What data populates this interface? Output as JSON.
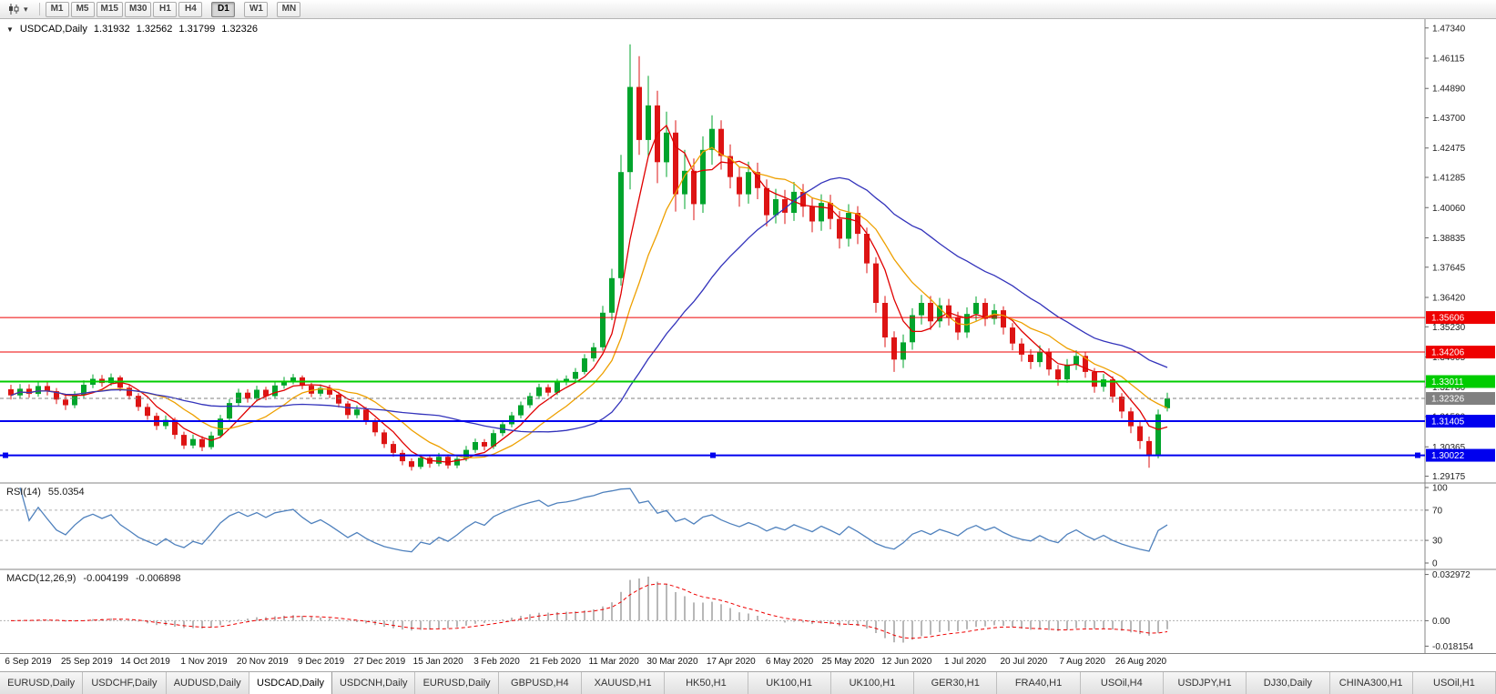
{
  "icons": {
    "symbol_caret": "▼",
    "toolbar_caret": "▾"
  },
  "toolbar": {
    "timeframes": [
      "M1",
      "M5",
      "M15",
      "M30",
      "H1",
      "H4",
      "D1",
      "W1",
      "MN"
    ],
    "active_timeframe": "D1",
    "group_breaks": [
      6,
      7,
      8
    ]
  },
  "chart": {
    "symbol": "USDCAD,Daily",
    "open": "1.31932",
    "high": "1.32562",
    "low": "1.31799",
    "close": "1.32326"
  },
  "chart_data": {
    "type": "candlestick",
    "title": "USDCAD,Daily",
    "candle_up_color": "#00a42c",
    "candle_down_color": "#dd1414",
    "price_domain": [
      1.289,
      1.477
    ],
    "price_axis_ticks": [
      "1.47340",
      "1.46115",
      "1.44890",
      "1.43700",
      "1.42475",
      "1.41285",
      "1.40060",
      "1.38835",
      "1.37645",
      "1.36420",
      "1.35230",
      "1.34005",
      "1.32780",
      "1.31590",
      "1.30365",
      "1.29175"
    ],
    "x_labels": [
      "6 Sep 2019",
      "25 Sep 2019",
      "14 Oct 2019",
      "1 Nov 2019",
      "20 Nov 2019",
      "9 Dec 2019",
      "27 Dec 2019",
      "15 Jan 2020",
      "3 Feb 2020",
      "21 Feb 2020",
      "11 Mar 2020",
      "30 Mar 2020",
      "17 Apr 2020",
      "6 May 2020",
      "25 May 2020",
      "12 Jun 2020",
      "1 Jul 2020",
      "20 Jul 2020",
      "7 Aug 2020",
      "26 Aug 2020"
    ],
    "moving_averages": [
      {
        "name": "ma-fast",
        "period": 5,
        "color": "#e00000"
      },
      {
        "name": "ma-medium",
        "period": 10,
        "color": "#eea000"
      },
      {
        "name": "ma-slow",
        "period": 25,
        "color": "#3333bb"
      }
    ],
    "levels": [
      {
        "value": 1.35606,
        "label": "1.35606",
        "color": "#ee0000",
        "width": 1
      },
      {
        "value": 1.34206,
        "label": "1.34206",
        "color": "#ee0000",
        "width": 1
      },
      {
        "value": 1.33011,
        "label": "1.33011",
        "color": "#00cc00",
        "width": 2
      },
      {
        "value": 1.31405,
        "label": "1.31405",
        "color": "#0000ee",
        "width": 2
      },
      {
        "value": 1.30022,
        "label": "1.30022",
        "color": "#0000ee",
        "width": 2,
        "selected": true
      }
    ],
    "current_price": {
      "value": 1.32326,
      "label": "1.32326",
      "color": "#808080"
    },
    "indicators": {
      "rsi": {
        "label": "RSI(14)",
        "value": "55.0354",
        "plot_period": 7,
        "color": "#4f81bd",
        "levels": [
          70,
          30
        ],
        "axis_ticks": [
          {
            "value": 100,
            "label": "100"
          },
          {
            "value": 70,
            "label": "70"
          },
          {
            "value": 30,
            "label": "30"
          },
          {
            "value": 0,
            "label": "0"
          }
        ]
      },
      "macd": {
        "label": "MACD(12,26,9)",
        "value_main": "-0.004199",
        "value_signal": "-0.006898",
        "fast": 6,
        "slow": 13,
        "signal": 5,
        "hist_color": "#b8b8b8",
        "signal_color": "#ee0000",
        "axis_ticks": [
          {
            "value": 0.032972,
            "label": "0.032972"
          },
          {
            "value": 0,
            "label": "0.00"
          },
          {
            "value": -0.018154,
            "label": "-0.018154"
          }
        ]
      }
    },
    "candles": [
      [
        1.327,
        1.3288,
        1.3228,
        1.3245
      ],
      [
        1.3245,
        1.3291,
        1.3232,
        1.3272
      ],
      [
        1.3272,
        1.329,
        1.3236,
        1.3251
      ],
      [
        1.3251,
        1.3301,
        1.324,
        1.3283
      ],
      [
        1.3283,
        1.3298,
        1.3245,
        1.3262
      ],
      [
        1.3262,
        1.3275,
        1.321,
        1.3228
      ],
      [
        1.3228,
        1.3246,
        1.3186,
        1.3205
      ],
      [
        1.3205,
        1.3262,
        1.3193,
        1.3246
      ],
      [
        1.3246,
        1.3306,
        1.3235,
        1.3288
      ],
      [
        1.3288,
        1.333,
        1.3274,
        1.3312
      ],
      [
        1.3312,
        1.3328,
        1.328,
        1.3295
      ],
      [
        1.3295,
        1.3334,
        1.3284,
        1.3318
      ],
      [
        1.3318,
        1.3326,
        1.3262,
        1.3276
      ],
      [
        1.3276,
        1.329,
        1.3228,
        1.3243
      ],
      [
        1.3243,
        1.3254,
        1.3182,
        1.3198
      ],
      [
        1.3198,
        1.3212,
        1.3146,
        1.3162
      ],
      [
        1.3162,
        1.3175,
        1.3105,
        1.3121
      ],
      [
        1.3121,
        1.3164,
        1.3108,
        1.3146
      ],
      [
        1.3146,
        1.3155,
        1.3068,
        1.3085
      ],
      [
        1.3085,
        1.3098,
        1.3028,
        1.3042
      ],
      [
        1.3042,
        1.3086,
        1.303,
        1.3068
      ],
      [
        1.3068,
        1.308,
        1.3019,
        1.3035
      ],
      [
        1.3035,
        1.3098,
        1.3026,
        1.3082
      ],
      [
        1.3082,
        1.3166,
        1.3072,
        1.3151
      ],
      [
        1.3151,
        1.323,
        1.3142,
        1.3214
      ],
      [
        1.3214,
        1.3272,
        1.3202,
        1.3256
      ],
      [
        1.3256,
        1.327,
        1.3216,
        1.3231
      ],
      [
        1.3231,
        1.3284,
        1.322,
        1.3268
      ],
      [
        1.3268,
        1.328,
        1.3226,
        1.3242
      ],
      [
        1.3242,
        1.33,
        1.3232,
        1.3285
      ],
      [
        1.3285,
        1.332,
        1.3272,
        1.3302
      ],
      [
        1.3302,
        1.3332,
        1.329,
        1.3318
      ],
      [
        1.3318,
        1.3326,
        1.327,
        1.3284
      ],
      [
        1.3284,
        1.3296,
        1.3238,
        1.3252
      ],
      [
        1.3252,
        1.329,
        1.3241,
        1.3275
      ],
      [
        1.3275,
        1.3288,
        1.3234,
        1.3248
      ],
      [
        1.3248,
        1.326,
        1.3196,
        1.3212
      ],
      [
        1.3212,
        1.3222,
        1.315,
        1.3165
      ],
      [
        1.3165,
        1.3204,
        1.3152,
        1.3188
      ],
      [
        1.3188,
        1.3198,
        1.3126,
        1.3142
      ],
      [
        1.3142,
        1.3152,
        1.308,
        1.3095
      ],
      [
        1.3095,
        1.3106,
        1.3032,
        1.3048
      ],
      [
        1.3048,
        1.306,
        1.2996,
        1.3012
      ],
      [
        1.3012,
        1.3024,
        1.2962,
        1.2978
      ],
      [
        1.2978,
        1.299,
        1.294,
        1.2955
      ],
      [
        1.2955,
        1.3006,
        1.2946,
        1.2992
      ],
      [
        1.2992,
        1.3002,
        1.2952,
        1.2968
      ],
      [
        1.2968,
        1.3012,
        1.2958,
        1.2996
      ],
      [
        1.2996,
        1.3006,
        1.2948,
        1.2961
      ],
      [
        1.2961,
        1.3004,
        1.295,
        1.2988
      ],
      [
        1.2988,
        1.304,
        1.2978,
        1.3024
      ],
      [
        1.3024,
        1.307,
        1.3012,
        1.3056
      ],
      [
        1.3056,
        1.3068,
        1.3022,
        1.3038
      ],
      [
        1.3038,
        1.3106,
        1.3028,
        1.3092
      ],
      [
        1.3092,
        1.3142,
        1.308,
        1.3128
      ],
      [
        1.3128,
        1.3178,
        1.3116,
        1.3164
      ],
      [
        1.3164,
        1.322,
        1.3152,
        1.3205
      ],
      [
        1.3205,
        1.3256,
        1.3194,
        1.3242
      ],
      [
        1.3242,
        1.3292,
        1.323,
        1.3278
      ],
      [
        1.3278,
        1.329,
        1.3242,
        1.3256
      ],
      [
        1.3256,
        1.3312,
        1.3246,
        1.3298
      ],
      [
        1.3298,
        1.3326,
        1.3286,
        1.3312
      ],
      [
        1.3312,
        1.3356,
        1.33,
        1.334
      ],
      [
        1.334,
        1.3412,
        1.333,
        1.3395
      ],
      [
        1.3395,
        1.3458,
        1.3382,
        1.344
      ],
      [
        1.344,
        1.3608,
        1.3426,
        1.358
      ],
      [
        1.358,
        1.3758,
        1.355,
        1.372
      ],
      [
        1.372,
        1.422,
        1.369,
        1.415
      ],
      [
        1.415,
        1.4668,
        1.408,
        1.4495
      ],
      [
        1.4495,
        1.462,
        1.422,
        1.428
      ],
      [
        1.428,
        1.454,
        1.4215,
        1.442
      ],
      [
        1.442,
        1.448,
        1.4105,
        1.419
      ],
      [
        1.419,
        1.4395,
        1.413,
        1.431
      ],
      [
        1.431,
        1.436,
        1.399,
        1.406
      ],
      [
        1.406,
        1.424,
        1.4,
        1.4155
      ],
      [
        1.4155,
        1.4205,
        1.3955,
        1.402
      ],
      [
        1.402,
        1.4295,
        1.3985,
        1.424
      ],
      [
        1.424,
        1.438,
        1.418,
        1.4325
      ],
      [
        1.4325,
        1.436,
        1.416,
        1.4215
      ],
      [
        1.4215,
        1.4262,
        1.4084,
        1.413
      ],
      [
        1.413,
        1.417,
        1.401,
        1.406
      ],
      [
        1.406,
        1.4192,
        1.4022,
        1.415
      ],
      [
        1.415,
        1.4188,
        1.404,
        1.4085
      ],
      [
        1.4085,
        1.412,
        1.393,
        1.3975
      ],
      [
        1.3975,
        1.4082,
        1.3942,
        1.404
      ],
      [
        1.404,
        1.4078,
        1.394,
        1.3985
      ],
      [
        1.3985,
        1.411,
        1.3952,
        1.407
      ],
      [
        1.407,
        1.4102,
        1.3968,
        1.401
      ],
      [
        1.401,
        1.4048,
        1.3906,
        1.395
      ],
      [
        1.395,
        1.406,
        1.3912,
        1.4025
      ],
      [
        1.4025,
        1.4058,
        1.3918,
        1.396
      ],
      [
        1.396,
        1.3992,
        1.384,
        1.388
      ],
      [
        1.388,
        1.402,
        1.3848,
        1.3985
      ],
      [
        1.3985,
        1.4012,
        1.3858,
        1.39
      ],
      [
        1.39,
        1.3925,
        1.374,
        1.378
      ],
      [
        1.378,
        1.3805,
        1.358,
        1.362
      ],
      [
        1.362,
        1.3648,
        1.344,
        1.348
      ],
      [
        1.348,
        1.3505,
        1.334,
        1.339
      ],
      [
        1.339,
        1.3492,
        1.3356,
        1.346
      ],
      [
        1.346,
        1.3598,
        1.343,
        1.357
      ],
      [
        1.357,
        1.3652,
        1.3532,
        1.362
      ],
      [
        1.362,
        1.3648,
        1.351,
        1.3545
      ],
      [
        1.3545,
        1.364,
        1.352,
        1.361
      ],
      [
        1.361,
        1.3636,
        1.3528,
        1.356
      ],
      [
        1.356,
        1.3584,
        1.347,
        1.35
      ],
      [
        1.35,
        1.3602,
        1.3478,
        1.3575
      ],
      [
        1.3575,
        1.3646,
        1.3548,
        1.362
      ],
      [
        1.362,
        1.3638,
        1.3526,
        1.3555
      ],
      [
        1.3555,
        1.3615,
        1.3532,
        1.359
      ],
      [
        1.359,
        1.3606,
        1.3492,
        1.352
      ],
      [
        1.352,
        1.3538,
        1.3428,
        1.3455
      ],
      [
        1.3455,
        1.3476,
        1.3382,
        1.341
      ],
      [
        1.341,
        1.3432,
        1.3352,
        1.338
      ],
      [
        1.338,
        1.3448,
        1.336,
        1.342
      ],
      [
        1.342,
        1.3436,
        1.3326,
        1.335
      ],
      [
        1.335,
        1.3368,
        1.3284,
        1.331
      ],
      [
        1.331,
        1.3392,
        1.3296,
        1.337
      ],
      [
        1.337,
        1.3428,
        1.3348,
        1.3405
      ],
      [
        1.3405,
        1.342,
        1.3316,
        1.334
      ],
      [
        1.334,
        1.3356,
        1.3256,
        1.328
      ],
      [
        1.328,
        1.3332,
        1.326,
        1.331
      ],
      [
        1.331,
        1.3322,
        1.3216,
        1.324
      ],
      [
        1.324,
        1.3254,
        1.3152,
        1.318
      ],
      [
        1.318,
        1.3196,
        1.3092,
        1.312
      ],
      [
        1.312,
        1.3138,
        1.3028,
        1.306
      ],
      [
        1.306,
        1.3078,
        1.2952,
        1.3005
      ],
      [
        1.3005,
        1.3188,
        1.299,
        1.3168
      ],
      [
        1.31932,
        1.32562,
        1.31799,
        1.32326
      ]
    ]
  },
  "tabs": {
    "active_index": 3,
    "items": [
      "EURUSD,Daily",
      "USDCHF,Daily",
      "AUDUSD,Daily",
      "USDCAD,Daily",
      "USDCNH,Daily",
      "EURUSD,Daily",
      "GBPUSD,H4",
      "XAUUSD,H1",
      "HK50,H1",
      "UK100,H1",
      "UK100,H1",
      "GER30,H1",
      "FRA40,H1",
      "USOil,H4",
      "USDJPY,H1",
      "DJ30,Daily",
      "CHINA300,H1",
      "USOil,H1"
    ]
  }
}
